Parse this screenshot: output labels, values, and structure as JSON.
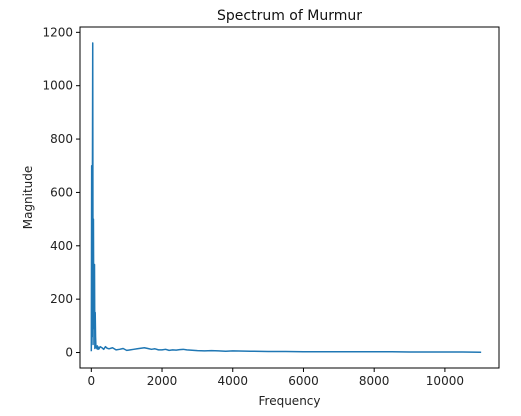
{
  "chart_data": {
    "type": "line",
    "title": "Spectrum of Murmur",
    "xlabel": "Frequency",
    "ylabel": "Magnitude",
    "xlim": [
      -320,
      11530
    ],
    "ylim": [
      -58,
      1220
    ],
    "xticks": [
      0,
      2000,
      4000,
      6000,
      8000,
      10000
    ],
    "yticks": [
      0,
      200,
      400,
      600,
      800,
      1000,
      1200
    ],
    "grid": false,
    "series_color": "#1f77b4",
    "series": [
      {
        "x": [
          0,
          10,
          20,
          30,
          40,
          50,
          60,
          70,
          80,
          90,
          100,
          110,
          120,
          130,
          140,
          150,
          160,
          170,
          180,
          190,
          200,
          220,
          250,
          300,
          350,
          400,
          450,
          500,
          600,
          700,
          800,
          900,
          1000,
          1100,
          1200,
          1300,
          1400,
          1500,
          1600,
          1700,
          1800,
          1900,
          2000,
          2100,
          2200,
          2300,
          2400,
          2500,
          2600,
          2700,
          2800,
          2900,
          3000,
          3200,
          3400,
          3600,
          3800,
          4000,
          4500,
          5000,
          5500,
          6000,
          6500,
          7000,
          7500,
          8000,
          8500,
          9000,
          9500,
          10000,
          10500,
          11025
        ],
        "y": [
          5,
          700,
          60,
          580,
          1160,
          30,
          500,
          120,
          90,
          330,
          15,
          150,
          60,
          25,
          18,
          22,
          14,
          25,
          16,
          12,
          20,
          14,
          22,
          18,
          12,
          22,
          16,
          14,
          18,
          10,
          12,
          15,
          8,
          10,
          12,
          14,
          16,
          18,
          15,
          12,
          14,
          10,
          10,
          12,
          8,
          10,
          9,
          11,
          12,
          10,
          9,
          8,
          7,
          6,
          7,
          6,
          5,
          6,
          5,
          4,
          4,
          3,
          3,
          3,
          3,
          3,
          3,
          2,
          2,
          2,
          2,
          1
        ]
      }
    ]
  }
}
